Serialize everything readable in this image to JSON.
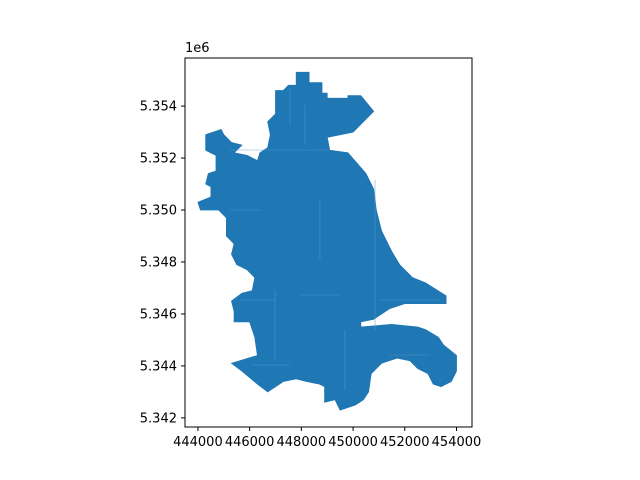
{
  "chart_data": {
    "type": "map",
    "title": "",
    "xlabel": "",
    "ylabel": "",
    "y_offset_label": "1e6",
    "xlim": [
      443500,
      454600
    ],
    "ylim": [
      5341650,
      5355850
    ],
    "x_ticks": [
      444000,
      446000,
      448000,
      450000,
      452000,
      454000
    ],
    "x_tick_labels": [
      "444000",
      "446000",
      "448000",
      "450000",
      "452000",
      "454000"
    ],
    "y_ticks": [
      5342000,
      5344000,
      5346000,
      5348000,
      5350000,
      5352000,
      5354000
    ],
    "y_tick_labels": [
      "5.342",
      "5.344",
      "5.346",
      "5.348",
      "5.350",
      "5.352",
      "5.354"
    ],
    "fill_color": "#1f77b4",
    "edge_color": "#4a90c8",
    "grid": false,
    "legend": "none",
    "outline": [
      [
        447800,
        5355300
      ],
      [
        448300,
        5355300
      ],
      [
        448300,
        5354900
      ],
      [
        448800,
        5354900
      ],
      [
        448800,
        5354500
      ],
      [
        449000,
        5354500
      ],
      [
        449000,
        5354300
      ],
      [
        449800,
        5354300
      ],
      [
        449800,
        5354400
      ],
      [
        450300,
        5354400
      ],
      [
        450800,
        5353800
      ],
      [
        450000,
        5353000
      ],
      [
        449000,
        5352800
      ],
      [
        449100,
        5352300
      ],
      [
        449800,
        5352200
      ],
      [
        450500,
        5351400
      ],
      [
        450800,
        5350800
      ],
      [
        450900,
        5350000
      ],
      [
        451100,
        5349200
      ],
      [
        451500,
        5348400
      ],
      [
        451800,
        5347900
      ],
      [
        452300,
        5347400
      ],
      [
        452800,
        5347200
      ],
      [
        453600,
        5346700
      ],
      [
        453600,
        5346400
      ],
      [
        452000,
        5346400
      ],
      [
        451400,
        5346200
      ],
      [
        450800,
        5345800
      ],
      [
        450300,
        5345700
      ],
      [
        450300,
        5345500
      ],
      [
        451500,
        5345600
      ],
      [
        452500,
        5345500
      ],
      [
        452800,
        5345400
      ],
      [
        453300,
        5345100
      ],
      [
        453500,
        5344800
      ],
      [
        454000,
        5344400
      ],
      [
        454000,
        5343800
      ],
      [
        453800,
        5343400
      ],
      [
        453400,
        5343200
      ],
      [
        453100,
        5343300
      ],
      [
        452900,
        5343700
      ],
      [
        452500,
        5343900
      ],
      [
        452200,
        5344200
      ],
      [
        451700,
        5344300
      ],
      [
        451100,
        5344100
      ],
      [
        450700,
        5343700
      ],
      [
        450600,
        5343000
      ],
      [
        450400,
        5342700
      ],
      [
        450100,
        5342500
      ],
      [
        449500,
        5342300
      ],
      [
        449300,
        5342700
      ],
      [
        448900,
        5342600
      ],
      [
        448900,
        5343200
      ],
      [
        448700,
        5343300
      ],
      [
        448200,
        5343400
      ],
      [
        447800,
        5343500
      ],
      [
        447300,
        5343400
      ],
      [
        446700,
        5343000
      ],
      [
        446300,
        5343300
      ],
      [
        445700,
        5343800
      ],
      [
        445300,
        5344100
      ],
      [
        446300,
        5344400
      ],
      [
        446200,
        5345100
      ],
      [
        446000,
        5345700
      ],
      [
        445400,
        5345700
      ],
      [
        445400,
        5346100
      ],
      [
        445300,
        5346500
      ],
      [
        445700,
        5346800
      ],
      [
        446100,
        5346900
      ],
      [
        446200,
        5347400
      ],
      [
        445900,
        5347700
      ],
      [
        445500,
        5347900
      ],
      [
        445300,
        5348300
      ],
      [
        445400,
        5348700
      ],
      [
        445100,
        5349000
      ],
      [
        445100,
        5349700
      ],
      [
        444800,
        5350000
      ],
      [
        444400,
        5350000
      ],
      [
        444100,
        5350000
      ],
      [
        444000,
        5350300
      ],
      [
        444500,
        5350500
      ],
      [
        444500,
        5350900
      ],
      [
        444300,
        5351000
      ],
      [
        444400,
        5351400
      ],
      [
        444700,
        5351500
      ],
      [
        444700,
        5352100
      ],
      [
        444300,
        5352300
      ],
      [
        444300,
        5352900
      ],
      [
        444900,
        5353100
      ],
      [
        445000,
        5352900
      ],
      [
        445300,
        5352600
      ],
      [
        445700,
        5352500
      ],
      [
        445400,
        5352200
      ],
      [
        445900,
        5352100
      ],
      [
        446300,
        5351900
      ],
      [
        446400,
        5352200
      ],
      [
        446700,
        5352400
      ],
      [
        446800,
        5352900
      ],
      [
        446700,
        5353400
      ],
      [
        447000,
        5353700
      ],
      [
        447000,
        5354600
      ],
      [
        447300,
        5354600
      ],
      [
        447500,
        5354800
      ],
      [
        447800,
        5354800
      ]
    ]
  }
}
